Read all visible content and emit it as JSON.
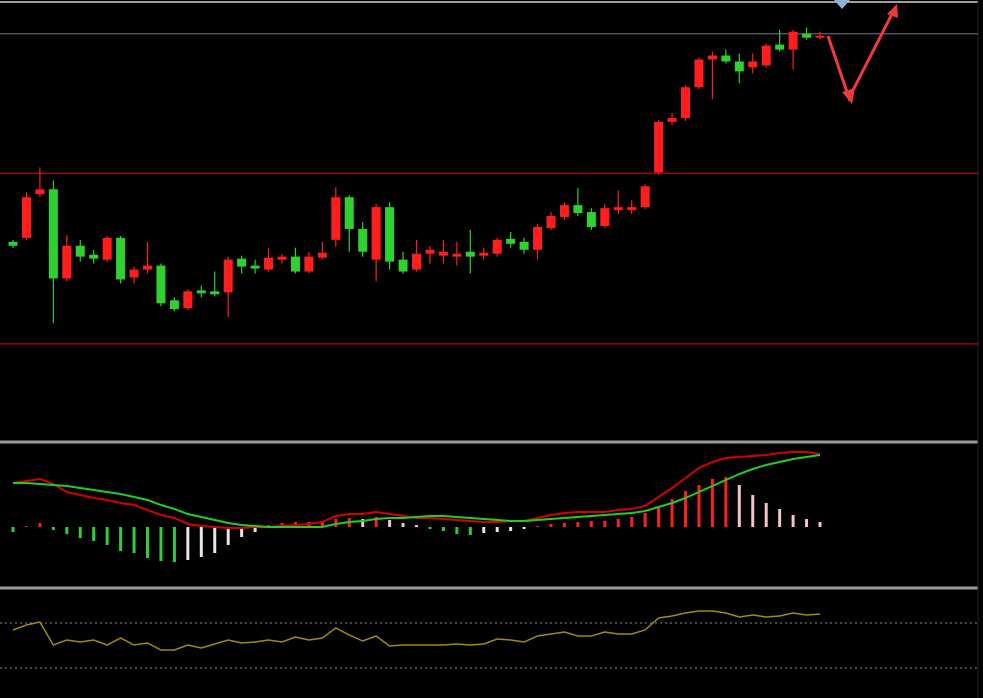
{
  "chart_data": [
    {
      "type": "candlestick",
      "ylim": [
        0,
        440
      ],
      "up_color": "#ff1e1e",
      "down_color": "#2ed12e",
      "open": [
        200,
        204,
        248,
        253,
        163,
        196,
        187,
        182,
        204,
        164,
        172,
        176,
        141,
        133,
        151,
        150,
        149,
        183,
        176,
        172,
        182,
        185,
        170,
        184,
        202,
        245,
        213,
        182,
        235,
        182,
        172,
        188,
        186,
        185,
        190,
        186,
        188,
        203,
        200,
        192,
        214,
        225,
        237,
        230,
        216,
        232,
        232,
        235,
        270,
        321,
        325,
        356,
        384,
        388,
        382,
        376,
        378,
        399,
        394,
        410,
        406
      ],
      "high": [
        202,
        250,
        275,
        262,
        207,
        202,
        192,
        206,
        206,
        175,
        200,
        178,
        144,
        152,
        156,
        170,
        185,
        186,
        182,
        194,
        188,
        194,
        190,
        200,
        255,
        247,
        220,
        238,
        240,
        190,
        202,
        196,
        202,
        200,
        212,
        194,
        204,
        210,
        204,
        218,
        230,
        240,
        254,
        234,
        238,
        252,
        242,
        258,
        323,
        330,
        358,
        386,
        392,
        394,
        390,
        390,
        400,
        414,
        414,
        416,
        412
      ],
      "low": [
        194,
        202,
        245,
        118,
        160,
        180,
        178,
        180,
        158,
        158,
        168,
        135,
        130,
        131,
        144,
        145,
        124,
        168,
        168,
        170,
        178,
        168,
        168,
        182,
        195,
        190,
        185,
        160,
        172,
        168,
        170,
        178,
        178,
        176,
        168,
        182,
        185,
        194,
        188,
        182,
        212,
        222,
        226,
        212,
        214,
        228,
        228,
        233,
        268,
        318,
        322,
        354,
        344,
        380,
        360,
        370,
        376,
        392,
        374,
        404,
        404
      ],
      "close": [
        196,
        245,
        253,
        163,
        196,
        185,
        183,
        204,
        162,
        172,
        176,
        138,
        132,
        150,
        148,
        147,
        182,
        175,
        173,
        184,
        185,
        170,
        185,
        189,
        245,
        213,
        190,
        235,
        180,
        170,
        188,
        192,
        190,
        188,
        185,
        189,
        202,
        198,
        192,
        215,
        226,
        237,
        229,
        215,
        234,
        235,
        235,
        256,
        321,
        325,
        356,
        384,
        388,
        382,
        372,
        382,
        398,
        394,
        412,
        406,
        408
      ],
      "levels": [
        {
          "value": 410,
          "color": "#5c636b"
        },
        {
          "value": 269,
          "color": "#b40000"
        },
        {
          "value": 97,
          "color": "#b40000"
        }
      ]
    },
    {
      "type": "macd",
      "ylim": [
        -58,
        84
      ],
      "histogram": [
        -5,
        1,
        4,
        -3,
        -7,
        -11,
        -14,
        -18,
        -24,
        -26,
        -31,
        -34,
        -35,
        -33,
        -30,
        -26,
        -18,
        -10,
        -5,
        2,
        4,
        5,
        5,
        6,
        8,
        9,
        8,
        10,
        7,
        4,
        2,
        -2,
        -4,
        -7,
        -8,
        -6,
        -5,
        -4,
        -2,
        1,
        3,
        4,
        5,
        6,
        6,
        8,
        10,
        14,
        20,
        28,
        36,
        42,
        48,
        50,
        42,
        32,
        24,
        18,
        12,
        8,
        5
      ],
      "histogram_colors": {
        "rising_positive": "#ff1e1e",
        "falling_positive": "#f2c4c8",
        "falling_negative": "#2ecc40",
        "rising_negative": "#e6e6e6"
      },
      "series": [
        {
          "color": "#d40000",
          "values": [
            44,
            46,
            48,
            43,
            35,
            32,
            29,
            27,
            24,
            22,
            17,
            12,
            9,
            3,
            1,
            0,
            -1,
            -1,
            0,
            0,
            1,
            2,
            3,
            5,
            11,
            13,
            13,
            15,
            13,
            11,
            9,
            9,
            8,
            7,
            6,
            5,
            5,
            6,
            6,
            9,
            12,
            14,
            15,
            15,
            15,
            17,
            18,
            21,
            30,
            39,
            49,
            59,
            65,
            69,
            70,
            71,
            72,
            74,
            75,
            75,
            73
          ]
        },
        {
          "color": "#22cc22",
          "values": [
            44,
            44,
            43,
            42,
            41,
            39,
            37,
            35,
            33,
            30,
            27,
            22,
            18,
            13,
            10,
            7,
            4,
            2,
            1,
            0,
            0,
            0,
            0,
            0,
            3,
            5,
            6,
            8,
            9,
            9,
            10,
            11,
            11,
            10,
            9,
            8,
            7,
            6,
            6,
            7,
            8,
            9,
            10,
            11,
            12,
            13,
            14,
            16,
            20,
            24,
            29,
            35,
            41,
            47,
            53,
            58,
            62,
            65,
            68,
            70,
            72
          ]
        }
      ]
    },
    {
      "type": "line",
      "ylim": [
        0,
        108
      ],
      "color": "#a08a10",
      "values": [
        68,
        73,
        76,
        53,
        58,
        56,
        58,
        53,
        60,
        53,
        55,
        48,
        48,
        53,
        50,
        54,
        58,
        55,
        56,
        58,
        56,
        61,
        58,
        60,
        70,
        63,
        57,
        62,
        52,
        53,
        53,
        53,
        53,
        54,
        53,
        54,
        59,
        58,
        56,
        62,
        64,
        66,
        62,
        62,
        66,
        64,
        64,
        68,
        80,
        82,
        85,
        87,
        87,
        85,
        81,
        83,
        81,
        82,
        85,
        83,
        84
      ],
      "levels": [
        75,
        30
      ]
    }
  ]
}
